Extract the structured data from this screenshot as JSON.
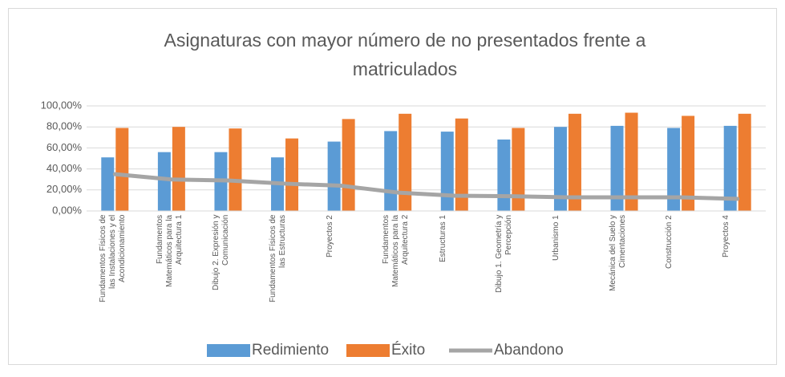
{
  "chart_data": {
    "type": "bar",
    "title": "Asignaturas con mayor número de no presentados frente a matriculados",
    "categories": [
      "Fundamentos Físicos de las Instalaciones y el Acondicionamiento",
      "Fundamentos Matemáticos para la Arquitectura 1",
      "Dibujo 2. Expresión y Comunicación",
      "Fundamentos Físicos de las Estructuras",
      "Proyectos 2",
      "Fundamentos Matemáticos para la Arquitectura 2",
      "Estructuras 1",
      "Dibujo 1. Geometría y Percepción",
      "Urbanismo 1",
      "Mecánica del Suelo y Cimentaciones",
      "Construcción 2",
      "Proyectos 4"
    ],
    "series": [
      {
        "name": "Redimiento",
        "type": "bar",
        "color": "#5b9bd5",
        "values": [
          51,
          56,
          56,
          51,
          66,
          76,
          75.5,
          68,
          80,
          81,
          79,
          81
        ]
      },
      {
        "name": "Éxito",
        "type": "bar",
        "color": "#ed7d31",
        "values": [
          79,
          80,
          78.5,
          69,
          87.5,
          92.5,
          88,
          79,
          92.5,
          93.5,
          90.5,
          92.5
        ]
      },
      {
        "name": "Abandono",
        "type": "line",
        "color": "#a5a5a5",
        "values": [
          35,
          30,
          29,
          26,
          24,
          17.5,
          14.5,
          14,
          13,
          13,
          13,
          11.5
        ]
      }
    ],
    "ylim": [
      0,
      100
    ],
    "yticks": [
      {
        "value": 0,
        "label": "0,00%"
      },
      {
        "value": 20,
        "label": "20,00%"
      },
      {
        "value": 40,
        "label": "40,00%"
      },
      {
        "value": 60,
        "label": "60,00%"
      },
      {
        "value": 80,
        "label": "80,00%"
      },
      {
        "value": 100,
        "label": "100,00%"
      }
    ],
    "grid": true,
    "legend": "bottom"
  }
}
